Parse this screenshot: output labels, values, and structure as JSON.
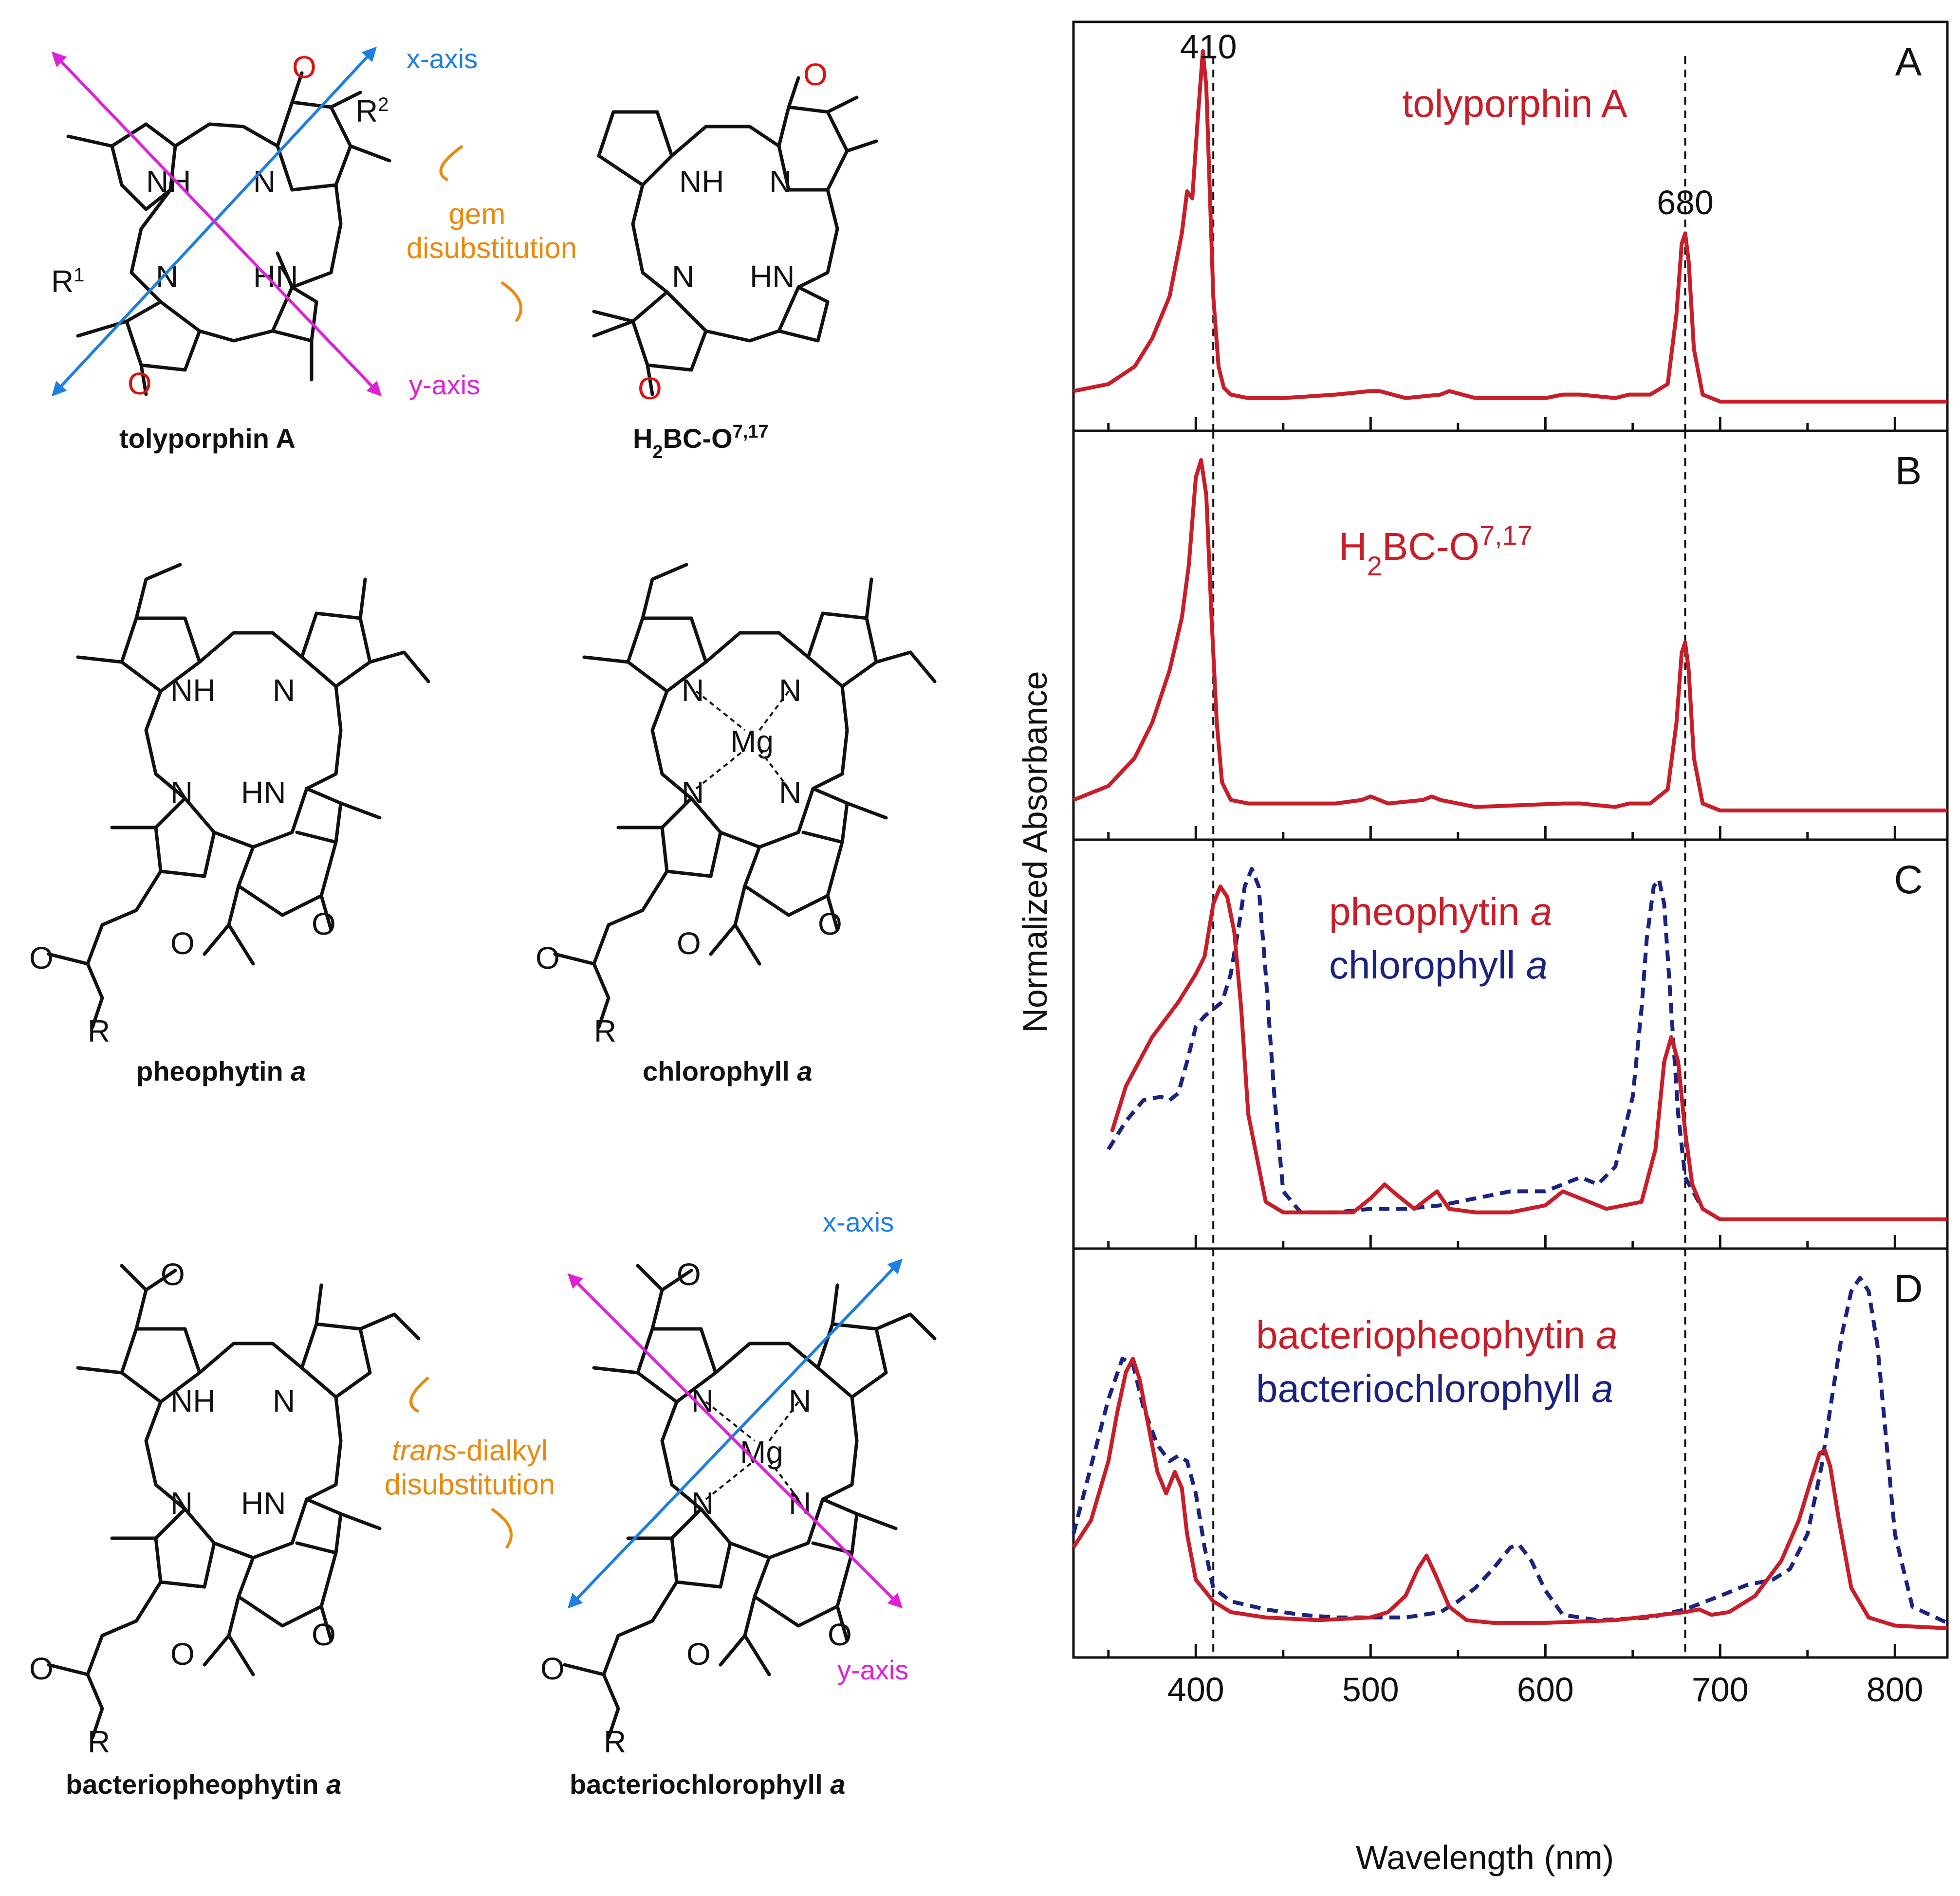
{
  "colors": {
    "red": "#c81e2a",
    "navy": "#1a237e",
    "blue_axis": "#1e7fe0",
    "magenta_axis": "#e020d8",
    "orange": "#e88a10",
    "oxygen_red": "#e01010"
  },
  "structures": {
    "tolyporphin": {
      "caption": "tolyporphin A",
      "r1": "R",
      "r1_sup": "1",
      "r2": "R",
      "r2_sup": "2",
      "x_axis": "x-axis",
      "y_axis": "y-axis",
      "nh": "NH",
      "hn": "HN",
      "n": "N",
      "o": "O"
    },
    "h2bc": {
      "caption_main": "H",
      "caption_sub": "2",
      "caption_mid": "BC-O",
      "caption_sup": "7,17",
      "nh": "NH",
      "hn": "HN",
      "n": "N",
      "o": "O"
    },
    "gem_label": [
      "gem",
      "disubstitution"
    ],
    "pheophytin": {
      "caption_main": "pheophytin ",
      "caption_italic": "a",
      "nh": "NH",
      "hn": "HN",
      "n": "N",
      "o": "O",
      "r": "R"
    },
    "chlorophyll": {
      "caption_main": "chlorophyll ",
      "caption_italic": "a",
      "mg": "Mg",
      "n": "N",
      "o": "O",
      "r": "R"
    },
    "bacteriopheophytin": {
      "caption_main": "bacteriopheophytin ",
      "caption_italic": "a",
      "nh": "NH",
      "hn": "HN",
      "n": "N",
      "o": "O",
      "r": "R"
    },
    "bacteriochlorophyll": {
      "caption_main": "bacteriochlorophyll ",
      "caption_italic": "a",
      "mg": "Mg",
      "n": "N",
      "o": "O",
      "r": "R",
      "x_axis": "x-axis",
      "y_axis": "y-axis"
    },
    "trans_label": {
      "italic": "trans",
      "rest": "-dialkyl",
      "line2": "disubstitution"
    }
  },
  "chart_data": {
    "type": "line",
    "xlabel": "Wavelength (nm)",
    "ylabel": "Normalized Absorbance",
    "xlim": [
      330,
      830
    ],
    "xticks": [
      400,
      500,
      600,
      700,
      800
    ],
    "reference_lines": [
      410,
      680
    ],
    "reference_labels": [
      "410",
      "680"
    ],
    "panels": [
      {
        "letter": "A",
        "legend": [
          {
            "main": "tolyporphin A",
            "italic": "",
            "sub": "",
            "sup": "",
            "color_key": "red"
          }
        ],
        "series": [
          {
            "name": "tolyporphin A",
            "style": "solid",
            "color_key": "red",
            "x": [
              330,
              350,
              365,
              375,
              385,
              392,
              395,
              398,
              401,
              404,
              406,
              408,
              410,
              413,
              416,
              420,
              430,
              450,
              480,
              500,
              505,
              520,
              540,
              545,
              560,
              600,
              610,
              620,
              640,
              648,
              660,
              670,
              675,
              678,
              680,
              682,
              685,
              690,
              700,
              750,
              830
            ],
            "y": [
              0.03,
              0.05,
              0.1,
              0.18,
              0.3,
              0.48,
              0.6,
              0.58,
              0.8,
              1.0,
              0.9,
              0.6,
              0.3,
              0.1,
              0.04,
              0.02,
              0.01,
              0.01,
              0.02,
              0.03,
              0.03,
              0.01,
              0.02,
              0.03,
              0.01,
              0.01,
              0.02,
              0.02,
              0.01,
              0.02,
              0.02,
              0.05,
              0.25,
              0.45,
              0.48,
              0.4,
              0.15,
              0.02,
              0.0,
              0.0,
              0.0
            ]
          }
        ]
      },
      {
        "letter": "B",
        "legend": [
          {
            "main": "H",
            "sub": "2",
            "rest": "BC-O",
            "sup": "7,17",
            "color_key": "red"
          }
        ],
        "series": [
          {
            "name": "H2BC-O7,17",
            "style": "solid",
            "color_key": "red",
            "x": [
              330,
              350,
              365,
              375,
              385,
              392,
              396,
              400,
              403,
              406,
              409,
              412,
              415,
              420,
              430,
              460,
              480,
              495,
              500,
              510,
              530,
              535,
              540,
              560,
              610,
              620,
              640,
              648,
              660,
              670,
              675,
              678,
              680,
              682,
              685,
              690,
              700,
              750,
              830
            ],
            "y": [
              0.03,
              0.07,
              0.15,
              0.25,
              0.4,
              0.55,
              0.7,
              0.95,
              1.0,
              0.9,
              0.55,
              0.25,
              0.08,
              0.03,
              0.02,
              0.02,
              0.02,
              0.03,
              0.04,
              0.02,
              0.03,
              0.04,
              0.03,
              0.01,
              0.02,
              0.02,
              0.01,
              0.02,
              0.02,
              0.06,
              0.25,
              0.45,
              0.48,
              0.4,
              0.15,
              0.02,
              0.0,
              0.0,
              0.0
            ]
          }
        ]
      },
      {
        "letter": "C",
        "legend": [
          {
            "main": "pheophytin ",
            "italic": "a",
            "color_key": "red"
          },
          {
            "main": "chlorophyll ",
            "italic": "a",
            "color_key": "navy"
          }
        ],
        "series": [
          {
            "name": "pheophytin a",
            "style": "solid",
            "color_key": "red",
            "x": [
              352,
              360,
              375,
              390,
              400,
              405,
              410,
              414,
              418,
              422,
              426,
              430,
              440,
              450,
              470,
              490,
              500,
              508,
              515,
              525,
              538,
              545,
              560,
              580,
              600,
              610,
              620,
              635,
              655,
              663,
              668,
              672,
              676,
              680,
              684,
              690,
              700,
              750,
              830
            ],
            "y": [
              0.25,
              0.38,
              0.52,
              0.62,
              0.7,
              0.75,
              0.9,
              0.95,
              0.92,
              0.82,
              0.6,
              0.3,
              0.05,
              0.02,
              0.02,
              0.02,
              0.06,
              0.1,
              0.07,
              0.03,
              0.08,
              0.03,
              0.02,
              0.02,
              0.04,
              0.08,
              0.06,
              0.03,
              0.05,
              0.2,
              0.45,
              0.52,
              0.45,
              0.25,
              0.1,
              0.03,
              0.0,
              0.0,
              0.0
            ]
          },
          {
            "name": "chlorophyll a",
            "style": "dashed",
            "color_key": "navy",
            "x": [
              350,
              360,
              370,
              380,
              385,
              390,
              395,
              400,
              405,
              410,
              415,
              420,
              425,
              428,
              432,
              436,
              440,
              445,
              450,
              460,
              480,
              500,
              520,
              540,
              560,
              580,
              600,
              620,
              630,
              640,
              650,
              655,
              658,
              662,
              665,
              668,
              672,
              676,
              680,
              690,
              700,
              750,
              830
            ],
            "y": [
              0.2,
              0.28,
              0.34,
              0.35,
              0.34,
              0.36,
              0.45,
              0.55,
              0.58,
              0.6,
              0.62,
              0.7,
              0.85,
              0.95,
              1.0,
              0.95,
              0.7,
              0.35,
              0.08,
              0.02,
              0.02,
              0.03,
              0.03,
              0.04,
              0.06,
              0.08,
              0.08,
              0.12,
              0.1,
              0.15,
              0.35,
              0.6,
              0.8,
              0.95,
              0.97,
              0.9,
              0.6,
              0.3,
              0.12,
              0.03,
              0.0,
              0.0,
              0.0
            ]
          }
        ]
      },
      {
        "letter": "D",
        "legend": [
          {
            "main": "bacteriopheophytin ",
            "italic": "a",
            "color_key": "red"
          },
          {
            "main": "bacteriochlorophyll ",
            "italic": "a",
            "color_key": "navy"
          }
        ],
        "series": [
          {
            "name": "bacteriopheophytin a",
            "style": "solid",
            "color_key": "red",
            "x": [
              330,
              340,
              350,
              355,
              360,
              364,
              368,
              372,
              378,
              383,
              388,
              392,
              395,
              400,
              410,
              420,
              440,
              470,
              500,
              510,
              520,
              527,
              532,
              537,
              545,
              555,
              570,
              600,
              640,
              680,
              688,
              695,
              705,
              720,
              735,
              745,
              752,
              757,
              760,
              763,
              768,
              775,
              785,
              800,
              830
            ],
            "y": [
              0.3,
              0.4,
              0.62,
              0.8,
              0.95,
              1.0,
              0.92,
              0.78,
              0.58,
              0.5,
              0.58,
              0.52,
              0.35,
              0.18,
              0.1,
              0.06,
              0.04,
              0.03,
              0.04,
              0.06,
              0.12,
              0.22,
              0.27,
              0.2,
              0.08,
              0.03,
              0.02,
              0.02,
              0.03,
              0.06,
              0.07,
              0.05,
              0.06,
              0.12,
              0.25,
              0.4,
              0.55,
              0.65,
              0.66,
              0.6,
              0.4,
              0.15,
              0.04,
              0.01,
              0.0
            ]
          },
          {
            "name": "bacteriochlorophyll a",
            "style": "dashed",
            "color_key": "navy",
            "x": [
              330,
              340,
              350,
              358,
              364,
              370,
              378,
              385,
              390,
              395,
              400,
              405,
              410,
              420,
              440,
              460,
              480,
              500,
              520,
              540,
              550,
              560,
              570,
              580,
              585,
              592,
              600,
              610,
              630,
              660,
              680,
              700,
              715,
              730,
              740,
              750,
              758,
              765,
              770,
              775,
              780,
              785,
              790,
              795,
              800,
              810,
              830
            ],
            "y": [
              0.35,
              0.6,
              0.85,
              1.0,
              0.98,
              0.82,
              0.68,
              0.62,
              0.64,
              0.62,
              0.5,
              0.3,
              0.15,
              0.1,
              0.07,
              0.05,
              0.04,
              0.04,
              0.04,
              0.06,
              0.1,
              0.15,
              0.22,
              0.3,
              0.31,
              0.25,
              0.14,
              0.05,
              0.03,
              0.04,
              0.07,
              0.12,
              0.16,
              0.18,
              0.22,
              0.35,
              0.6,
              0.9,
              1.1,
              1.25,
              1.3,
              1.25,
              1.05,
              0.7,
              0.35,
              0.08,
              0.02
            ]
          }
        ]
      }
    ]
  }
}
